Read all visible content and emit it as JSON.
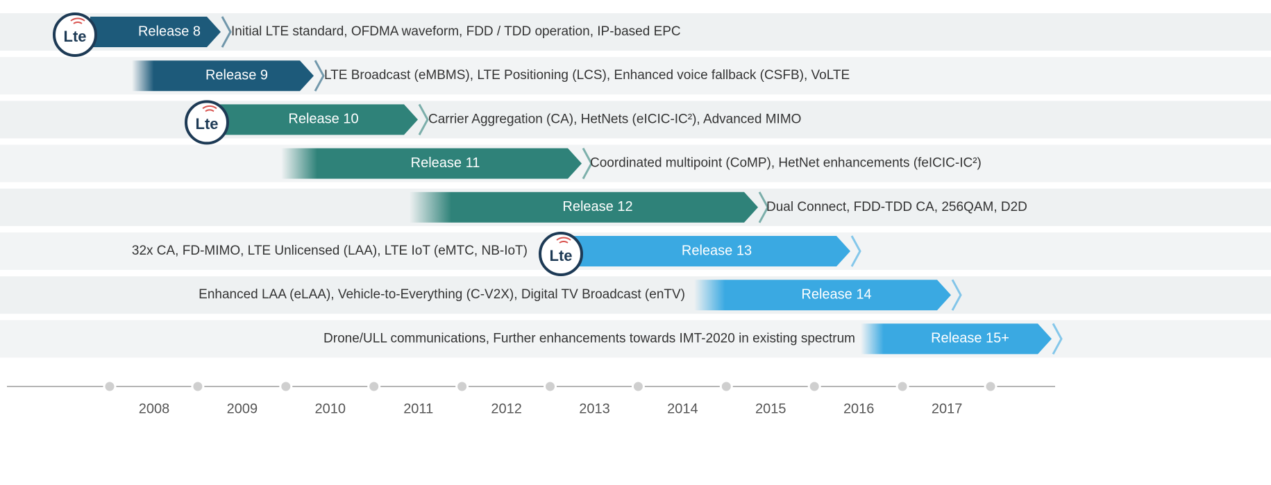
{
  "rows": [
    {
      "release": "Release 8",
      "description": "Initial LTE standard, OFDMA waveform, FDD / TDD operation, IP-based EPC",
      "logo": "Lte"
    },
    {
      "release": "Release 9",
      "description": "LTE Broadcast (eMBMS), LTE Positioning (LCS), Enhanced voice fallback (CSFB), VoLTE"
    },
    {
      "release": "Release 10",
      "description": "Carrier Aggregation (CA), HetNets (eICIC-IC²), Advanced MIMO",
      "logo": "Lte"
    },
    {
      "release": "Release 11",
      "description": "Coordinated multipoint (CoMP), HetNet enhancements (feICIC-IC²)"
    },
    {
      "release": "Release 12",
      "description": "Dual Connect, FDD-TDD CA, 256QAM, D2D"
    },
    {
      "release": "Release 13",
      "description": "32x CA, FD-MIMO, LTE Unlicensed (LAA), LTE IoT (eMTC, NB-IoT)",
      "logo": "Lte"
    },
    {
      "release": "Release 14",
      "description": "Enhanced LAA (eLAA), Vehicle-to-Everything (C-V2X), Digital TV Broadcast (enTV)"
    },
    {
      "release": "Release 15+",
      "description": "Drone/ULL communications, Further enhancements towards IMT-2020 in existing spectrum"
    }
  ],
  "years": [
    "2008",
    "2009",
    "2010",
    "2011",
    "2012",
    "2013",
    "2014",
    "2015",
    "2016",
    "2017"
  ]
}
